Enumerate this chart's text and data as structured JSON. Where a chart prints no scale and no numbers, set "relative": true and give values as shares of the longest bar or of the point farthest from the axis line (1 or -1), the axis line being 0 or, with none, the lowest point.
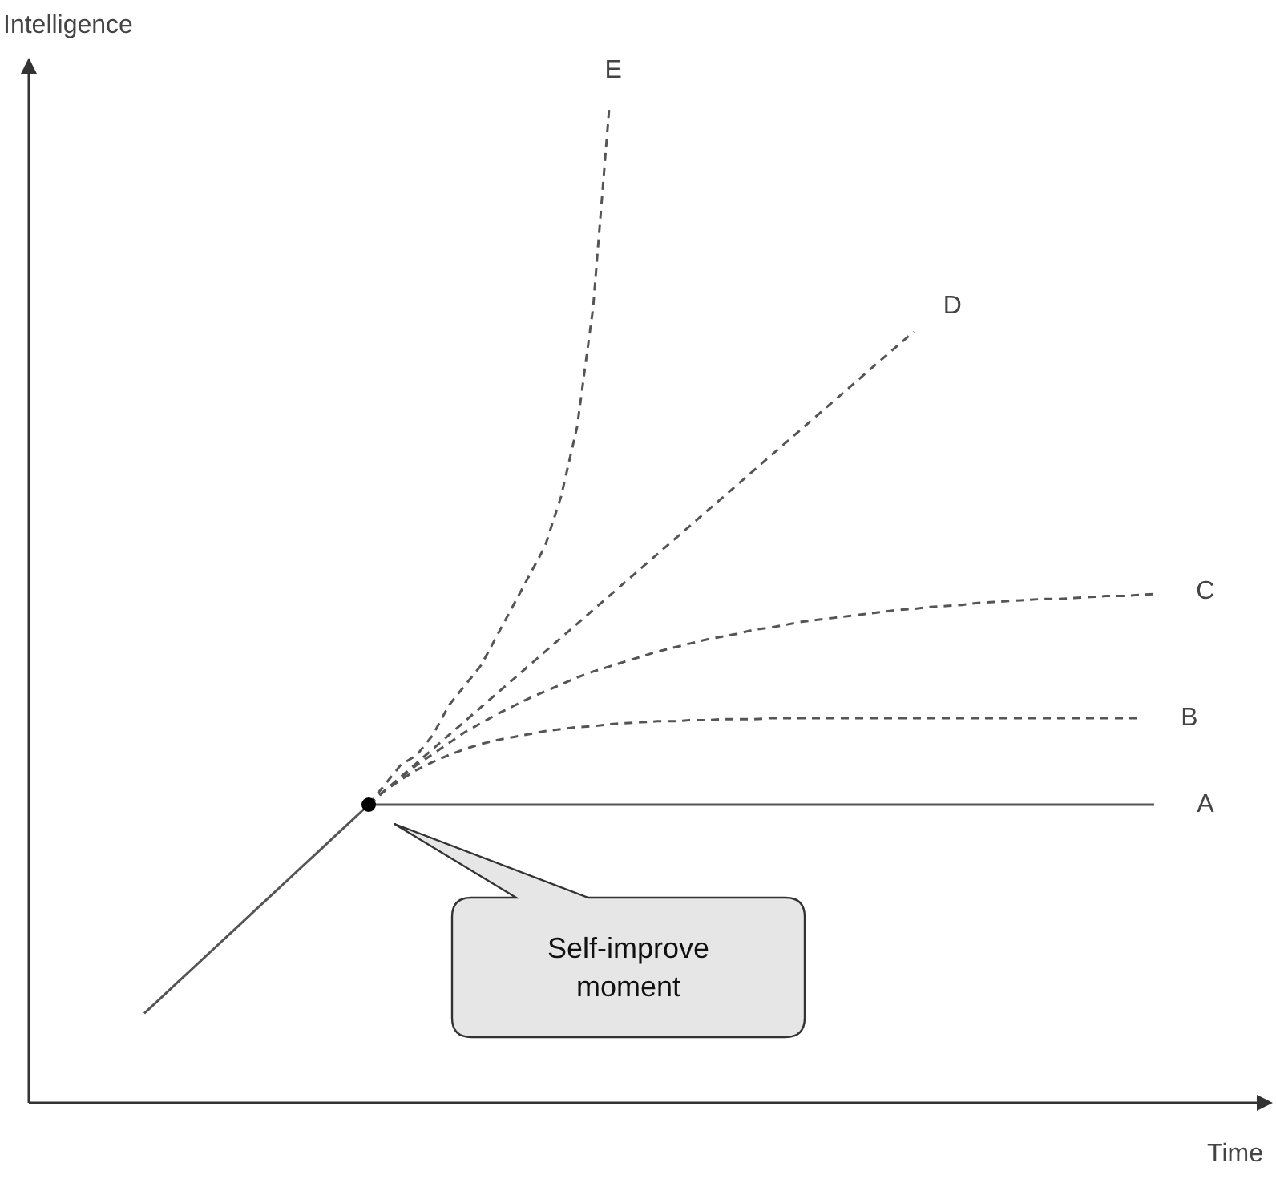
{
  "chart_data": {
    "type": "line",
    "relative": true,
    "xlabel": "Time",
    "ylabel": "Intelligence",
    "marker": "none",
    "categories": [
      null,
      null,
      null,
      null,
      null,
      null,
      null,
      null,
      null,
      null,
      null,
      null,
      null,
      null,
      null,
      null,
      null,
      null,
      null,
      null,
      null,
      null,
      null,
      null,
      null,
      null,
      null,
      null,
      null,
      null,
      null,
      null,
      null,
      null,
      null,
      null,
      null,
      null,
      null,
      null,
      null,
      null,
      null,
      null,
      null,
      null,
      null,
      null,
      null,
      null,
      null,
      null,
      null,
      null,
      null,
      null,
      null,
      null,
      null,
      null,
      null,
      null,
      null,
      null,
      null,
      null,
      null,
      null,
      null,
      null,
      null,
      null,
      null,
      null,
      null,
      null,
      null,
      null
    ],
    "series": [
      {
        "color": "#555555",
        "line_style": "solid",
        "values": [
          null,
          null,
          null,
          null,
          null,
          null,
          null,
          0.09,
          0.105,
          0.12,
          0.135,
          0.15,
          0.165,
          0.18,
          0.195,
          0.21,
          0.225,
          0.24,
          0.255,
          0.27,
          0.285,
          0.3,
          null,
          null,
          null,
          null,
          null,
          null,
          null,
          null,
          null,
          null,
          null,
          null,
          null,
          null,
          null,
          null,
          null,
          null,
          null,
          null,
          null,
          null,
          null,
          null,
          null,
          null,
          null,
          null,
          null,
          null,
          null,
          null,
          null,
          null,
          null,
          null,
          null,
          null,
          null,
          null,
          null,
          null,
          null,
          null,
          null,
          null,
          null,
          null,
          null,
          null,
          null,
          null,
          null,
          null,
          null,
          null
        ]
      },
      {
        "name": "A",
        "color": "#555555",
        "line_style": "solid",
        "values": [
          null,
          null,
          null,
          null,
          null,
          null,
          null,
          null,
          null,
          null,
          null,
          null,
          null,
          null,
          null,
          null,
          null,
          null,
          null,
          null,
          null,
          0.3,
          0.3,
          0.3,
          0.3,
          0.3,
          0.3,
          0.3,
          0.3,
          0.3,
          0.3,
          0.3,
          0.3,
          0.3,
          0.3,
          0.3,
          0.3,
          0.3,
          0.3,
          0.3,
          0.3,
          0.3,
          0.3,
          0.3,
          0.3,
          0.3,
          0.3,
          0.3,
          0.3,
          0.3,
          0.3,
          0.3,
          0.3,
          0.3,
          0.3,
          0.3,
          0.3,
          0.3,
          0.3,
          0.3,
          0.3,
          0.3,
          0.3,
          0.3,
          0.3,
          0.3,
          0.3,
          0.3,
          0.3,
          0.3,
          0.3,
          null,
          null,
          null,
          null,
          null,
          null,
          null
        ]
      },
      {
        "name": "B",
        "color": "#555555",
        "line_style": "dashed",
        "values": [
          null,
          null,
          null,
          null,
          null,
          null,
          null,
          null,
          null,
          null,
          null,
          null,
          null,
          null,
          null,
          null,
          null,
          null,
          null,
          null,
          null,
          0.3,
          0.314,
          0.325,
          0.335,
          0.343,
          0.35,
          0.356,
          0.361,
          0.365,
          0.368,
          0.371,
          0.374,
          0.376,
          0.378,
          0.379,
          0.381,
          0.382,
          0.383,
          0.384,
          0.384,
          0.385,
          0.385,
          0.386,
          0.386,
          0.386,
          0.387,
          0.387,
          0.387,
          0.387,
          0.387,
          0.387,
          0.387,
          0.387,
          0.387,
          0.387,
          0.387,
          0.387,
          0.387,
          0.387,
          0.387,
          0.387,
          0.387,
          0.387,
          0.387,
          0.387,
          0.387,
          0.387,
          0.387,
          0.387,
          null,
          null,
          null,
          null,
          null,
          null,
          null,
          null
        ]
      },
      {
        "name": "C",
        "color": "#555555",
        "line_style": "dashed",
        "values": [
          null,
          null,
          null,
          null,
          null,
          null,
          null,
          null,
          null,
          null,
          null,
          null,
          null,
          null,
          null,
          null,
          null,
          null,
          null,
          null,
          null,
          0.3,
          0.314,
          0.327,
          0.34,
          0.351,
          0.362,
          0.373,
          0.382,
          0.391,
          0.399,
          0.407,
          0.414,
          0.421,
          0.428,
          0.434,
          0.439,
          0.444,
          0.449,
          0.454,
          0.458,
          0.462,
          0.466,
          0.469,
          0.472,
          0.476,
          0.478,
          0.481,
          0.484,
          0.486,
          0.488,
          0.49,
          0.492,
          0.494,
          0.496,
          0.497,
          0.499,
          0.5,
          0.501,
          0.503,
          0.504,
          0.505,
          0.506,
          0.507,
          0.507,
          0.508,
          0.509,
          0.51,
          0.51,
          0.511,
          0.512,
          null,
          null,
          null,
          null,
          null,
          null,
          null
        ]
      },
      {
        "name": "D",
        "color": "#555555",
        "line_style": "dashed",
        "values": [
          null,
          null,
          null,
          null,
          null,
          null,
          null,
          null,
          null,
          null,
          null,
          null,
          null,
          null,
          null,
          null,
          null,
          null,
          null,
          null,
          null,
          0.3,
          0.314,
          0.328,
          0.342,
          0.356,
          0.37,
          0.384,
          0.398,
          0.412,
          0.426,
          0.44,
          0.454,
          0.468,
          0.482,
          0.496,
          0.51,
          0.524,
          0.538,
          0.552,
          0.566,
          0.58,
          0.594,
          0.608,
          0.622,
          0.636,
          0.65,
          0.664,
          0.678,
          0.692,
          0.706,
          0.72,
          0.734,
          0.748,
          0.762,
          0.776,
          null,
          null,
          null,
          null,
          null,
          null,
          null,
          null,
          null,
          null,
          null,
          null,
          null,
          null,
          null,
          null,
          null,
          null,
          null,
          null,
          null,
          null
        ]
      },
      {
        "name": "E",
        "color": "#555555",
        "line_style": "dashed",
        "values": [
          null,
          null,
          null,
          null,
          null,
          null,
          null,
          null,
          null,
          null,
          null,
          null,
          null,
          null,
          null,
          null,
          null,
          null,
          null,
          null,
          null,
          0.3,
          0.32,
          0.34,
          0.35,
          0.37,
          0.4,
          0.42,
          0.44,
          0.47,
          0.5,
          0.53,
          0.56,
          0.61,
          0.68,
          0.8,
          1,
          null,
          null,
          null,
          null,
          null,
          null,
          null,
          null,
          null,
          null,
          null,
          null,
          null,
          null,
          null,
          null,
          null,
          null,
          null,
          null,
          null,
          null,
          null,
          null,
          null,
          null,
          null,
          null,
          null,
          null,
          null,
          null,
          null,
          null,
          null,
          null,
          null,
          null,
          null,
          null,
          null
        ]
      }
    ],
    "annotations": [
      "Self-improve moment"
    ]
  }
}
